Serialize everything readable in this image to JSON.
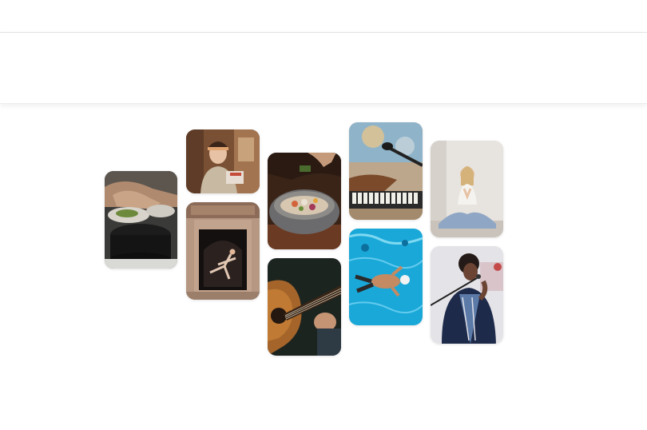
{
  "tiles": [
    {
      "id": "cooking-pan",
      "icon": "cooking-pan-photo"
    },
    {
      "id": "crafter-woman",
      "icon": "crafter-woman-photo"
    },
    {
      "id": "dancer-doorway",
      "icon": "dancer-doorway-photo"
    },
    {
      "id": "food-bowl",
      "icon": "food-bowl-photo"
    },
    {
      "id": "acoustic-guitar",
      "icon": "acoustic-guitar-photo"
    },
    {
      "id": "keyboard-microphone",
      "icon": "keyboard-microphone-photo"
    },
    {
      "id": "swimmer-pool",
      "icon": "swimmer-pool-photo"
    },
    {
      "id": "yoga-meditation",
      "icon": "yoga-meditation-photo"
    },
    {
      "id": "singer-microphone",
      "icon": "singer-microphone-photo"
    }
  ],
  "colors": {
    "page_background": "#ffffff",
    "header_border": "#e4e4e4",
    "pool_blue": "#1aa8d8",
    "guitar_wood": "#a5652a"
  }
}
